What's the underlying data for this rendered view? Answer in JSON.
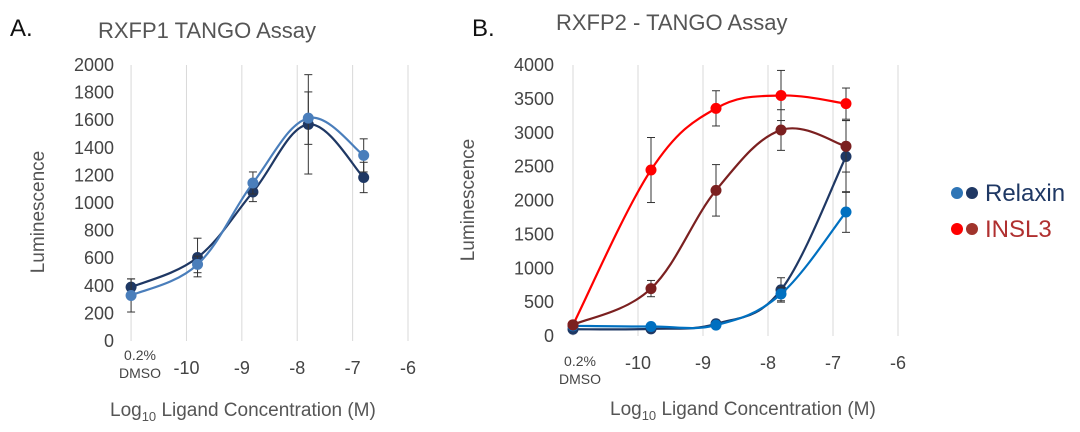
{
  "chart_data": [
    {
      "type": "line",
      "panel_label": "A.",
      "title": "RXFP1 TANGO Assay",
      "xlabel_main": "Log",
      "xlabel_sub": "10",
      "xlabel_rest": " Ligand Concentration (M)",
      "ylabel": "Luminescence",
      "xlim": [
        -11.2,
        -6
      ],
      "ylim": [
        0,
        2000
      ],
      "x_ticks": [
        -10,
        -9,
        -8,
        -7,
        -6
      ],
      "x_tick_labels": [
        "-10",
        "-9",
        "-8",
        "-7",
        "-6"
      ],
      "y_ticks": [
        0,
        200,
        400,
        600,
        800,
        1000,
        1200,
        1400,
        1600,
        1800,
        2000
      ],
      "y_tick_labels": [
        "0",
        "200",
        "400",
        "600",
        "800",
        "1000",
        "1200",
        "1400",
        "1600",
        "1800",
        "2000"
      ],
      "control_label": [
        "0.2%",
        "DMSO"
      ],
      "control_x": -11,
      "grid": "vertical",
      "series": [
        {
          "color": "#1f3864",
          "x": [
            -11,
            -9.8,
            -8.8,
            -7.8,
            -6.8
          ],
          "y": [
            390,
            605,
            1080,
            1570,
            1185
          ],
          "err": [
            60,
            140,
            70,
            360,
            110
          ]
        },
        {
          "color": "#4a7ebb",
          "x": [
            -11,
            -9.8,
            -8.8,
            -7.8,
            -6.8
          ],
          "y": [
            330,
            555,
            1145,
            1615,
            1345
          ],
          "err": [
            120,
            60,
            80,
            190,
            120
          ]
        }
      ]
    },
    {
      "type": "line",
      "panel_label": "B.",
      "title": "RXFP2 - TANGO Assay",
      "xlabel_main": "Log",
      "xlabel_sub": "10",
      "xlabel_rest": " Ligand Concentration (M)",
      "ylabel": "Luminescence",
      "xlim": [
        -11.2,
        -6
      ],
      "ylim": [
        0,
        4000
      ],
      "x_ticks": [
        -10,
        -9,
        -8,
        -7,
        -6
      ],
      "x_tick_labels": [
        "-10",
        "-9",
        "-8",
        "-7",
        "-6"
      ],
      "y_ticks": [
        0,
        500,
        1000,
        1500,
        2000,
        2500,
        3000,
        3500,
        4000
      ],
      "y_tick_labels": [
        "0",
        "500",
        "1000",
        "1500",
        "2000",
        "2500",
        "3000",
        "3500",
        "4000"
      ],
      "control_label": [
        "0.2%",
        "DMSO"
      ],
      "control_x": -11,
      "grid": "vertical",
      "series": [
        {
          "color": "#1f3864",
          "x": [
            -11,
            -9.8,
            -8.8,
            -7.8,
            -6.8
          ],
          "y": [
            100,
            105,
            180,
            680,
            2650
          ],
          "err": [
            0,
            0,
            0,
            180,
            530
          ]
        },
        {
          "color": "#0070c0",
          "x": [
            -11,
            -9.8,
            -8.8,
            -7.8,
            -6.8
          ],
          "y": [
            150,
            140,
            160,
            620,
            1830
          ],
          "err": [
            0,
            0,
            0,
            100,
            300
          ]
        },
        {
          "color": "#ff0000",
          "x": [
            -11,
            -9.8,
            -8.8,
            -7.8,
            -6.8
          ],
          "y": [
            165,
            2450,
            3360,
            3550,
            3430
          ],
          "err": [
            0,
            480,
            260,
            370,
            230
          ]
        },
        {
          "color": "#7b2020",
          "x": [
            -11,
            -9.8,
            -8.8,
            -7.8,
            -6.8
          ],
          "y": [
            165,
            700,
            2150,
            3040,
            2800
          ],
          "err": [
            0,
            120,
            380,
            300,
            380
          ]
        }
      ]
    }
  ],
  "legend": [
    {
      "label": "Relaxin",
      "text_color": "#1f3864",
      "dot_colors": [
        "#2e75b6",
        "#1f3864"
      ]
    },
    {
      "label": "INSL3",
      "text_color": "#b03030",
      "dot_colors": [
        "#ff0000",
        "#a0342c"
      ]
    }
  ]
}
